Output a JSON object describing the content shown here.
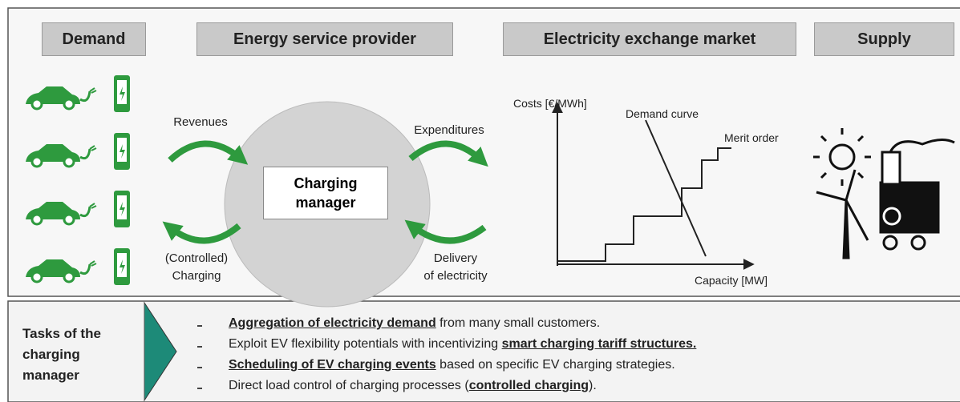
{
  "headers": [
    "Demand",
    "Energy service provider",
    "Electricity exchange market",
    "Supply"
  ],
  "flows": {
    "revenues": [
      "Revenues"
    ],
    "expenditures": [
      "Expenditures"
    ],
    "charging": [
      "(Controlled)",
      "Charging"
    ],
    "delivery": [
      "Delivery",
      "of electricity"
    ]
  },
  "center": [
    "Charging",
    "manager"
  ],
  "market": {
    "y_label": "Costs [€/MWh]",
    "x_label": "Capacity [MW]",
    "demand_label": "Demand curve",
    "merit_label": "Merit order"
  },
  "tasks": {
    "title": [
      "Tasks of the",
      "charging",
      "manager"
    ],
    "items": [
      [
        {
          "text": "Aggregation of electricity demand",
          "bold": true
        },
        {
          "text": " from many small customers.",
          "bold": false
        }
      ],
      [
        {
          "text": "Exploit EV flexibility potentials with incentivizing ",
          "bold": false
        },
        {
          "text": "smart charging tariff structures.",
          "bold": true
        }
      ],
      [
        {
          "text": "Scheduling of EV charging events",
          "bold": true
        },
        {
          "text": " based on specific EV charging strategies.",
          "bold": false
        }
      ],
      [
        {
          "text": "Direct load control of charging processes (",
          "bold": false
        },
        {
          "text": "controlled charging",
          "bold": true
        },
        {
          "text": ").",
          "bold": false
        }
      ]
    ]
  }
}
